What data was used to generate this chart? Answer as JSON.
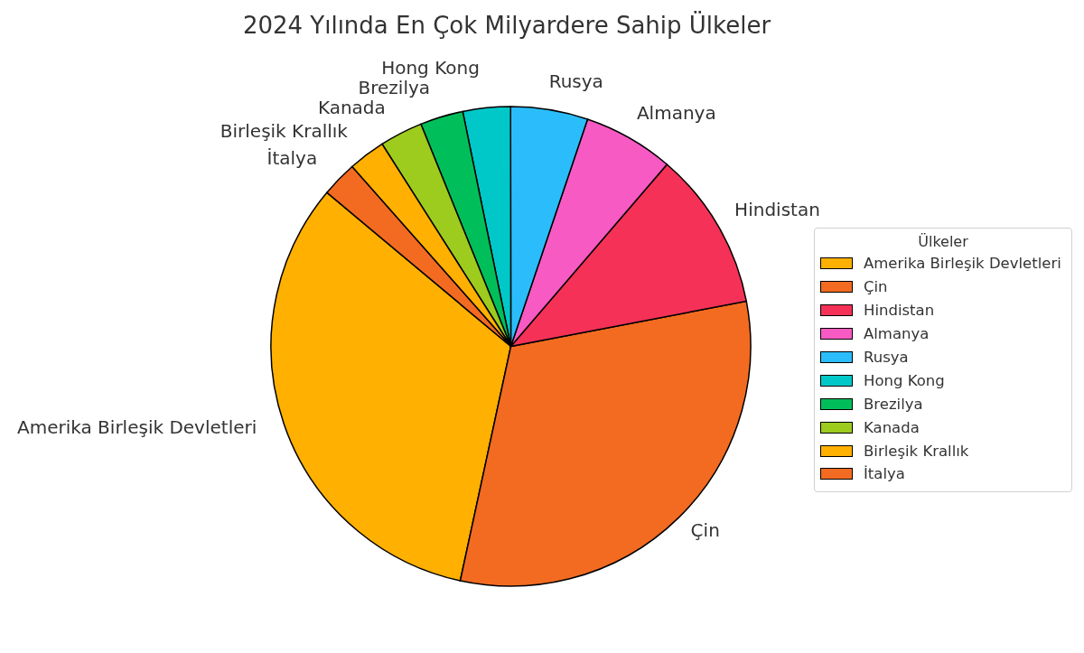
{
  "chart_data": {
    "type": "pie",
    "title": "2024 Yılında En Çok Milyardere Sahip Ülkeler",
    "legend_title": "Ülkeler",
    "legend": "right",
    "categories": [
      "Amerika Birleşik Devletleri",
      "Çin",
      "Hindistan",
      "Almanya",
      "Rusya",
      "Hong Kong",
      "Brezilya",
      "Kanada",
      "Birleşik Krallık",
      "İtalya"
    ],
    "values": [
      32.7,
      31.4,
      10.7,
      6.1,
      5.2,
      3.2,
      2.9,
      2.9,
      2.5,
      2.4
    ],
    "colors": [
      "#ffb000",
      "#f26b21",
      "#f53157",
      "#f75ac2",
      "#2bbdfb",
      "#00c8c8",
      "#00bf5a",
      "#9dcb1e",
      "#ffb000",
      "#f26b21"
    ]
  }
}
